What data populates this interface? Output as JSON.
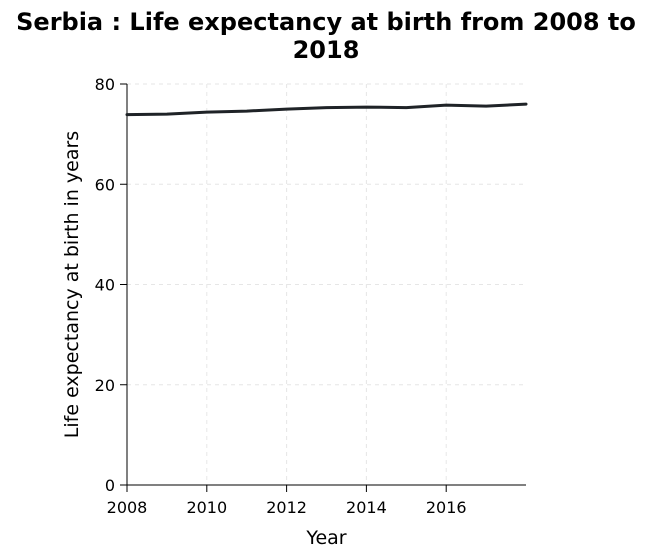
{
  "chart_data": {
    "type": "line",
    "title": "Serbia : Life expectancy at birth from 2008 to 2018",
    "xlabel": "Year",
    "ylabel": "Life expectancy at birth in years",
    "xlim": [
      2008,
      2018
    ],
    "ylim": [
      0,
      80
    ],
    "x_ticks": [
      2008,
      2010,
      2012,
      2014,
      2016
    ],
    "y_ticks": [
      0,
      20,
      40,
      60,
      80
    ],
    "grid": true,
    "series": [
      {
        "x": [
          2008,
          2009,
          2010,
          2011,
          2012,
          2013,
          2014,
          2015,
          2016,
          2017,
          2018
        ],
        "values": [
          73.9,
          74.0,
          74.4,
          74.6,
          75.0,
          75.3,
          75.4,
          75.3,
          75.8,
          75.6,
          76.0
        ]
      }
    ],
    "colors": {
      "line": "#1f2327",
      "grid": "#e6e6e6",
      "axis": "#000000"
    }
  }
}
